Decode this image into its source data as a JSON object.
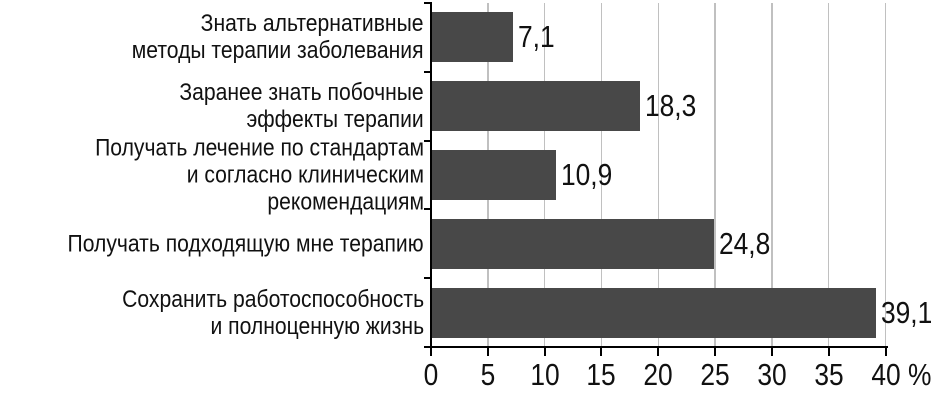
{
  "chart_data": {
    "type": "bar",
    "orientation": "horizontal",
    "categories": [
      [
        "Знать альтернативные",
        "методы терапии заболевания"
      ],
      [
        "Заранее знать побочные",
        "эффекты терапии"
      ],
      [
        "Получать лечение по стандартам",
        "и согласно клиническим рекомендациям"
      ],
      [
        "Получать подходящую мне терапию"
      ],
      [
        "Сохранить работоспособность",
        "и полноценную жизнь"
      ]
    ],
    "values": [
      7.1,
      18.3,
      10.9,
      24.8,
      39.1
    ],
    "value_labels": [
      "7,1",
      "18,3",
      "10,9",
      "24,8",
      "39,1"
    ],
    "xlabel": "%",
    "x_ticks": [
      0,
      5,
      10,
      15,
      20,
      25,
      30,
      35,
      40
    ],
    "xlim": [
      0,
      40
    ],
    "grid": "vertical",
    "legend": "none",
    "title": "",
    "colors": {
      "bar": "#484848",
      "gridline": "#c0c0c0",
      "axis": "#000000",
      "text": "#111111",
      "background": "#ffffff"
    }
  }
}
